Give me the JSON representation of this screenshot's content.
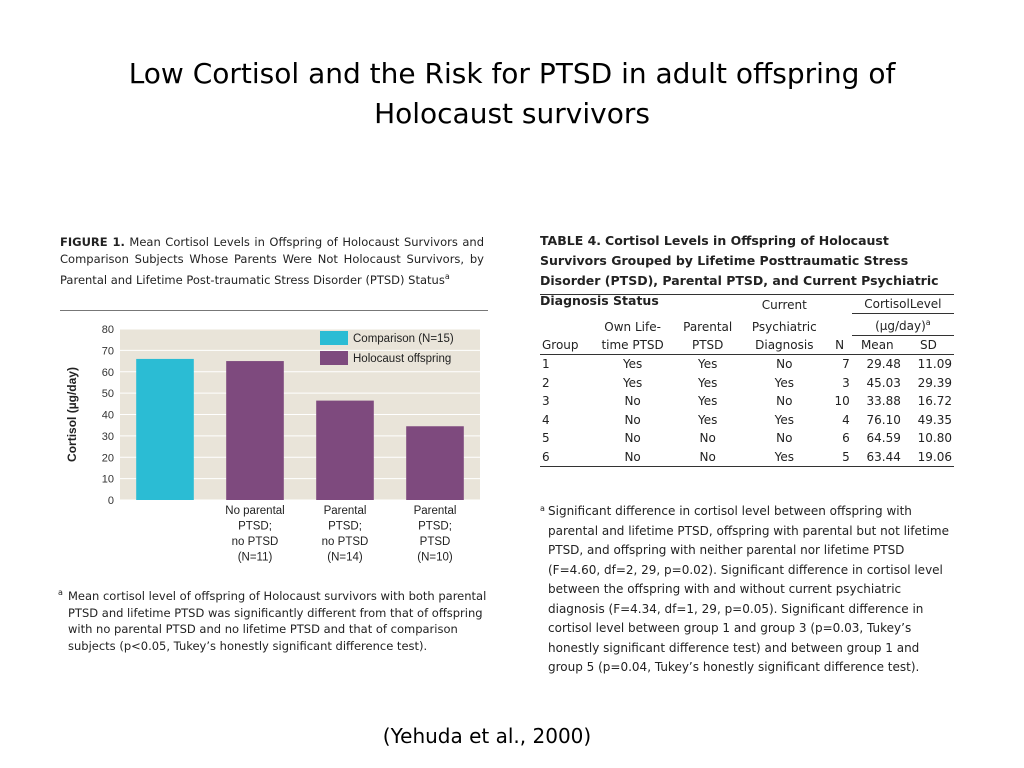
{
  "slide": {
    "title_line1": "Low Cortisol and the Risk for PTSD in adult offspring of",
    "title_line2": "Holocaust survivors",
    "citation": "(Yehuda et al., 2000)"
  },
  "figure": {
    "caption_label": "FIGURE 1.",
    "caption_text": "Mean Cortisol Levels in Offspring of Holocaust Survivors and Comparison Subjects Whose Parents Were Not Holocaust Survivors, by Parental and Lifetime Post-traumatic Stress Disorder (PTSD) Status",
    "caption_sup": "a",
    "footnote_mark": "a",
    "footnote_text": "Mean cortisol level of offspring of Holocaust survivors with both parental PTSD and lifetime PTSD was significantly different from that of offspring with no parental PTSD and no lifetime PTSD and that of comparison subjects (p<0.05, Tukey’s honestly significant difference test)."
  },
  "chart_data": {
    "type": "bar",
    "title": "",
    "xlabel": "",
    "ylabel": "Cortisol (µg/day)",
    "ylim": [
      0,
      80
    ],
    "yticks": [
      0,
      10,
      20,
      30,
      40,
      50,
      60,
      70,
      80
    ],
    "grid": true,
    "legend_position": "top-right",
    "categories": [
      {
        "lines": []
      },
      {
        "lines": [
          "No parental",
          "PTSD;",
          "no PTSD",
          "(N=11)"
        ]
      },
      {
        "lines": [
          "Parental",
          "PTSD;",
          "no PTSD",
          "(N=14)"
        ]
      },
      {
        "lines": [
          "Parental",
          "PTSD;",
          "PTSD",
          "(N=10)"
        ]
      }
    ],
    "series": [
      {
        "name": "Comparison (N=15)",
        "color": "#2bbcd4",
        "values": [
          66,
          null,
          null,
          null
        ]
      },
      {
        "name": "Holocaust offspring",
        "color": "#7e4a7e",
        "values": [
          null,
          65,
          46.5,
          34.5
        ]
      }
    ],
    "plot_background": "#e9e4d9"
  },
  "table": {
    "caption_label": "TABLE 4.",
    "caption_text": "Cortisol Levels in Offspring of Holocaust Survivors Grouped by Lifetime Posttraumatic Stress Disorder (PTSD), Parental PTSD, and Current Psychiatric Diagnosis Status",
    "headers": {
      "group": "Group",
      "own_line1": "Own Life-",
      "own_line2": "time PTSD",
      "parental_line1": "Parental",
      "parental_line2": "PTSD",
      "current_line1": "Current",
      "current_line2": "Psychiatric",
      "current_line3": "Diagnosis",
      "n": "N",
      "cortisol_a": "Cortisol",
      "cortisol_b": "Level",
      "units": "(µg/day)",
      "units_sup": "a",
      "mean": "Mean",
      "sd": "SD"
    },
    "rows": [
      {
        "group": "1",
        "own": "Yes",
        "parental": "Yes",
        "current": "No",
        "n": "7",
        "mean": "29.48",
        "sd": "11.09"
      },
      {
        "group": "2",
        "own": "Yes",
        "parental": "Yes",
        "current": "Yes",
        "n": "3",
        "mean": "45.03",
        "sd": "29.39"
      },
      {
        "group": "3",
        "own": "No",
        "parental": "Yes",
        "current": "No",
        "n": "10",
        "mean": "33.88",
        "sd": "16.72"
      },
      {
        "group": "4",
        "own": "No",
        "parental": "Yes",
        "current": "Yes",
        "n": "4",
        "mean": "76.10",
        "sd": "49.35"
      },
      {
        "group": "5",
        "own": "No",
        "parental": "No",
        "current": "No",
        "n": "6",
        "mean": "64.59",
        "sd": "10.80"
      },
      {
        "group": "6",
        "own": "No",
        "parental": "No",
        "current": "Yes",
        "n": "5",
        "mean": "63.44",
        "sd": "19.06"
      }
    ],
    "footnote_mark": "a",
    "footnote_text": "Significant difference in cortisol level between offspring with parental and lifetime PTSD, offspring with parental but not lifetime PTSD, and offspring with neither parental nor lifetime PTSD (F=4.60, df=2, 29, p=0.02). Significant difference in cortisol level between the offspring with and without current psychiatric diagnosis (F=4.34, df=1, 29, p=0.05). Significant difference in cortisol level between group 1 and group 3 (p=0.03, Tukey’s honestly significant difference test) and between group 1 and group 5 (p=0.04, Tukey’s honestly significant difference test)."
  }
}
